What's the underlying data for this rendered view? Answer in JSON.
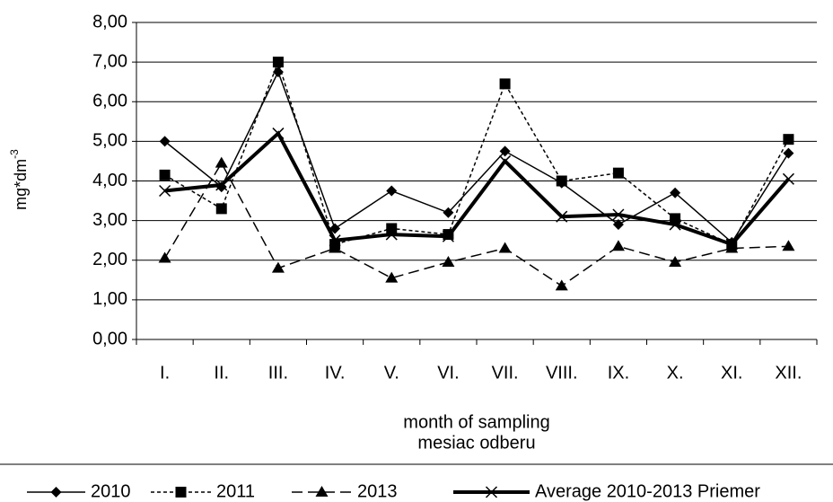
{
  "chart_data": {
    "type": "line",
    "y_label": {
      "base": "mg*dm",
      "sup": "-3"
    },
    "x_label": [
      "month of sampling",
      "mesiac odberu"
    ],
    "categories": [
      "I.",
      "II.",
      "III.",
      "IV.",
      "V.",
      "VI.",
      "VII.",
      "VIII.",
      "IX.",
      "X.",
      "XI.",
      "XII."
    ],
    "series": [
      {
        "name": "2010",
        "color": "#000000",
        "marker": "diamond",
        "dash": "none",
        "width": 1.5,
        "values": [
          5.0,
          3.85,
          6.75,
          2.8,
          3.75,
          3.2,
          4.75,
          3.95,
          2.9,
          3.7,
          2.45,
          4.7
        ]
      },
      {
        "name": "2011",
        "color": "#000000",
        "marker": "square",
        "dash": "4 3",
        "width": 1.5,
        "values": [
          4.15,
          3.3,
          7.0,
          2.4,
          2.8,
          2.65,
          6.45,
          4.0,
          4.2,
          3.05,
          2.4,
          5.05
        ]
      },
      {
        "name": "2013",
        "color": "#000000",
        "marker": "triangle",
        "dash": "12 6",
        "width": 1.5,
        "values": [
          2.05,
          4.45,
          1.8,
          2.3,
          1.55,
          1.95,
          2.3,
          1.35,
          2.35,
          1.95,
          2.3,
          2.35
        ]
      },
      {
        "name": "Average 2010-2013 Priemer",
        "color": "#000000",
        "marker": "x",
        "dash": "none",
        "width": 4,
        "values": [
          3.75,
          3.9,
          5.2,
          2.5,
          2.65,
          2.6,
          4.5,
          3.1,
          3.15,
          2.9,
          2.4,
          4.05
        ]
      }
    ],
    "ylim": [
      0,
      8
    ],
    "yticks": [
      {
        "value": 0,
        "label": "0,00"
      },
      {
        "value": 1,
        "label": "1,00"
      },
      {
        "value": 2,
        "label": "2,00"
      },
      {
        "value": 3,
        "label": "3,00"
      },
      {
        "value": 4,
        "label": "4,00"
      },
      {
        "value": 5,
        "label": "5,00"
      },
      {
        "value": 6,
        "label": "6,00"
      },
      {
        "value": 7,
        "label": "7,00"
      },
      {
        "value": 8,
        "label": "8,00"
      }
    ],
    "grid": true,
    "legend": "bottom"
  }
}
